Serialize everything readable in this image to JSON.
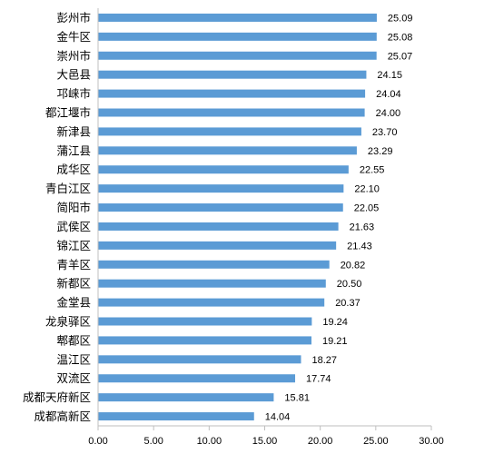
{
  "chart_data": {
    "type": "bar",
    "orientation": "horizontal",
    "categories": [
      "彭州市",
      "金牛区",
      "崇州市",
      "大邑县",
      "邛崃市",
      "都江堰市",
      "新津县",
      "蒲江县",
      "成华区",
      "青白江区",
      "简阳市",
      "武侯区",
      "锦江区",
      "青羊区",
      "新都区",
      "金堂县",
      "龙泉驿区",
      "郫都区",
      "温江区",
      "双流区",
      "成都天府新区",
      "成都高新区"
    ],
    "values": [
      25.09,
      25.08,
      25.07,
      24.15,
      24.04,
      24.0,
      23.7,
      23.29,
      22.55,
      22.1,
      22.05,
      21.63,
      21.43,
      20.82,
      20.5,
      20.37,
      19.24,
      19.21,
      18.27,
      17.74,
      15.81,
      14.04
    ],
    "value_labels": [
      "25.09",
      "25.08",
      "25.07",
      "24.15",
      "24.04",
      "24.00",
      "23.70",
      "23.29",
      "22.55",
      "22.10",
      "22.05",
      "21.63",
      "21.43",
      "20.82",
      "20.50",
      "20.37",
      "19.24",
      "19.21",
      "18.27",
      "17.74",
      "15.81",
      "14.04"
    ],
    "x_ticks": [
      "0.00",
      "5.00",
      "10.00",
      "15.00",
      "20.00",
      "25.00",
      "30.00"
    ],
    "xlim": [
      0,
      30
    ],
    "bar_color": "#5b9bd5",
    "grid": false,
    "title": "",
    "xlabel": "",
    "ylabel": ""
  }
}
